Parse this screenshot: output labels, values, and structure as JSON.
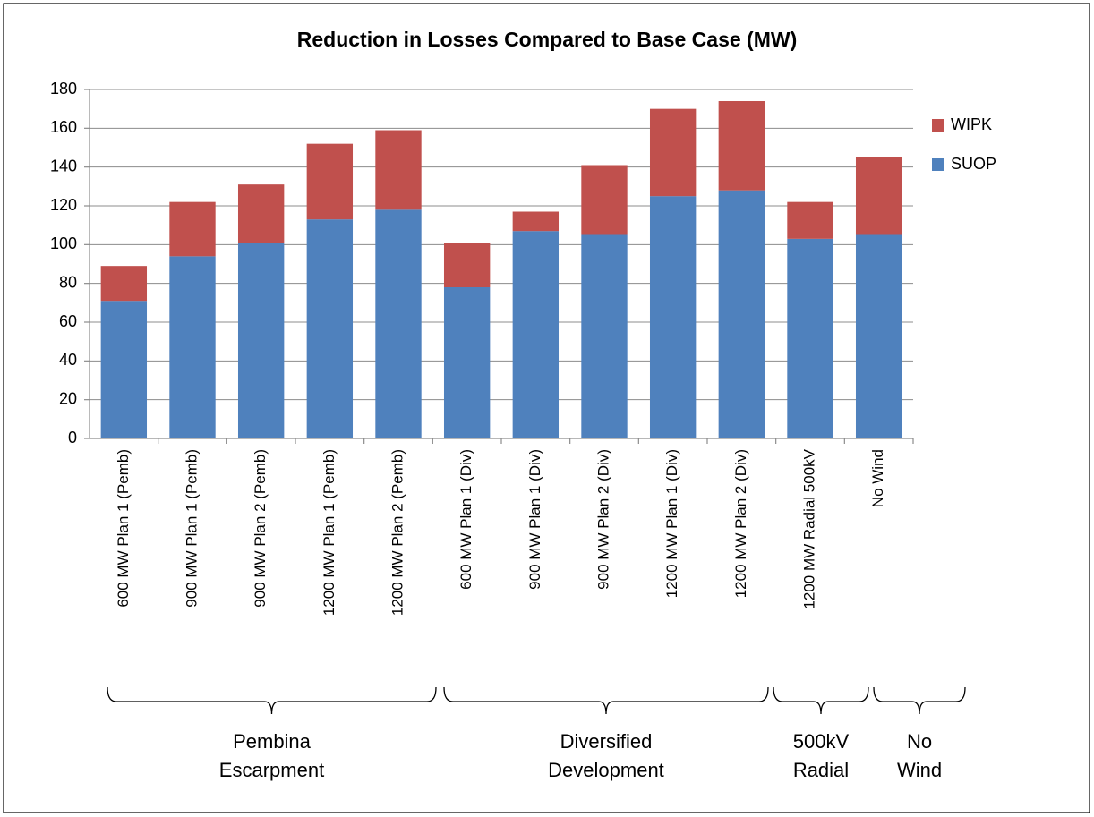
{
  "chart_data": {
    "type": "stacked_bar",
    "title": "Reduction in Losses Compared to Base Case (MW)",
    "categories": [
      "600 MW Plan 1 (Pemb)",
      "900 MW Plan 1 (Pemb)",
      "900 MW Plan 2 (Pemb)",
      "1200 MW Plan 1 (Pemb)",
      "1200 MW Plan 2 (Pemb)",
      "600 MW Plan 1 (Div)",
      "900 MW Plan 1 (Div)",
      "900 MW Plan 2 (Div)",
      "1200 MW Plan 1 (Div)",
      "1200 MW Plan 2 (Div)",
      "1200 MW Radial 500kV",
      "No Wind"
    ],
    "series": [
      {
        "name": "SUOP",
        "color": "#4f81bd",
        "values": [
          71,
          94,
          101,
          113,
          118,
          78,
          107,
          105,
          125,
          128,
          103,
          105
        ]
      },
      {
        "name": "WIPK",
        "color": "#c0504d",
        "values": [
          18,
          28,
          30,
          39,
          41,
          23,
          10,
          36,
          45,
          46,
          19,
          40
        ]
      }
    ],
    "ylim": [
      0,
      180
    ],
    "yticks": [
      0,
      20,
      40,
      60,
      80,
      100,
      120,
      140,
      160,
      180
    ],
    "grid": true,
    "legend": "right",
    "groups": [
      {
        "lines": [
          "Pembina",
          "Escarpment"
        ]
      },
      {
        "lines": [
          "Diversified",
          "Development"
        ]
      },
      {
        "lines": [
          "500kV",
          "Radial"
        ]
      },
      {
        "lines": [
          "No",
          "Wind"
        ]
      }
    ]
  }
}
